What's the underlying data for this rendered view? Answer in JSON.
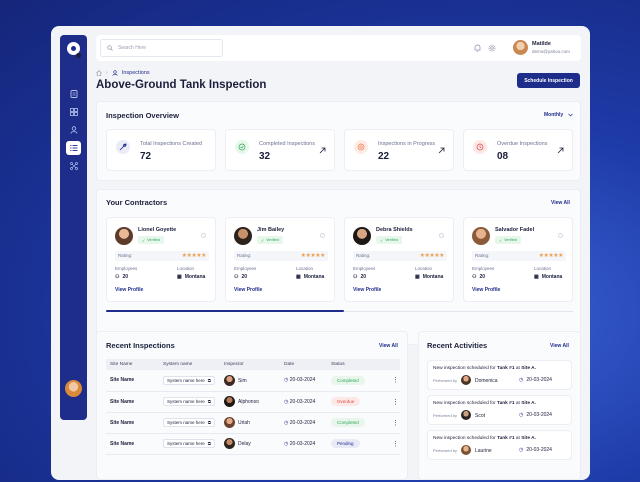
{
  "header": {
    "search_placeholder": "Search Here",
    "user_name": "Matilde",
    "user_email": "demo@yahoo.com"
  },
  "breadcrumb": {
    "current": "Inspections"
  },
  "page": {
    "title": "Above-Ground Tank Inspection",
    "schedule_button": "Schedule Inspection"
  },
  "overview": {
    "title": "Inspection Overview",
    "period": "Monthly",
    "stats": [
      {
        "label": "Total Inspections Created",
        "value": "72",
        "color": "#1e2c8a",
        "icon": "wrench-icon"
      },
      {
        "label": "Completed Inspections",
        "value": "32",
        "color": "#2ea858",
        "icon": "check-icon"
      },
      {
        "label": "Inspections in Progress",
        "value": "22",
        "color": "#f07a50",
        "icon": "progress-icon"
      },
      {
        "label": "Overdue Inspections",
        "value": "08",
        "color": "#e04848",
        "icon": "overdue-icon"
      }
    ]
  },
  "contractors": {
    "title": "Your Contractors",
    "view_all": "View All",
    "items": [
      {
        "name": "Lionel Goyette",
        "badge": "Verified",
        "rating_label": "Rating:",
        "stars": "★★★★★",
        "employees_label": "Employees",
        "employees": "20",
        "location_label": "Location",
        "location": "Montana",
        "link": "View Profile"
      },
      {
        "name": "Jim Bailey",
        "badge": "Verified",
        "rating_label": "Rating:",
        "stars": "★★★★★",
        "employees_label": "Employees",
        "employees": "20",
        "location_label": "Location",
        "location": "Montana",
        "link": "View Profile"
      },
      {
        "name": "Debra Shields",
        "badge": "Verified",
        "rating_label": "Rating:",
        "stars": "★★★★★",
        "employees_label": "Employees",
        "employees": "20",
        "location_label": "Location",
        "location": "Montana",
        "link": "View Profile"
      },
      {
        "name": "Salvador Fadel",
        "badge": "Verified",
        "rating_label": "Rating:",
        "stars": "★★★★★",
        "employees_label": "Employees",
        "employees": "20",
        "location_label": "Location",
        "location": "Montana",
        "link": "View Profile"
      }
    ]
  },
  "recent_inspections": {
    "title": "Recent Inspections",
    "view_all": "View All",
    "columns": [
      "Site Name",
      "System name",
      "Inspector",
      "Date",
      "Status"
    ],
    "rows": [
      {
        "site": "Site Name",
        "system": "System name here",
        "inspector": "Sim",
        "date": "20-03-2024",
        "status": "Completed"
      },
      {
        "site": "Site Name",
        "system": "System name here",
        "inspector": "Alphonso",
        "date": "20-03-2024",
        "status": "Overdue"
      },
      {
        "site": "Site Name",
        "system": "System name here",
        "inspector": "Uriah",
        "date": "20-03-2024",
        "status": "Completed"
      },
      {
        "site": "Site Name",
        "system": "System name here",
        "inspector": "Delay",
        "date": "20-03-2024",
        "status": "Pending"
      }
    ]
  },
  "recent_activities": {
    "title": "Recent Activities",
    "view_all": "View All",
    "items": [
      {
        "text_prefix": "New inspection scheduled for ",
        "tank": "Tank #1",
        "text_mid": " at ",
        "site": "Site A.",
        "by_label": "Performed by",
        "name": "Domenica",
        "date": "20-03-2024"
      },
      {
        "text_prefix": "New inspection scheduled for ",
        "tank": "Tank #1",
        "text_mid": " at ",
        "site": "Site A.",
        "by_label": "Performed by",
        "name": "Scot",
        "date": "20-03-2024"
      },
      {
        "text_prefix": "New inspection scheduled for ",
        "tank": "Tank #1",
        "text_mid": " at ",
        "site": "Site A.",
        "by_label": "Performed by",
        "name": "Laurine",
        "date": "20-03-2024"
      }
    ]
  }
}
